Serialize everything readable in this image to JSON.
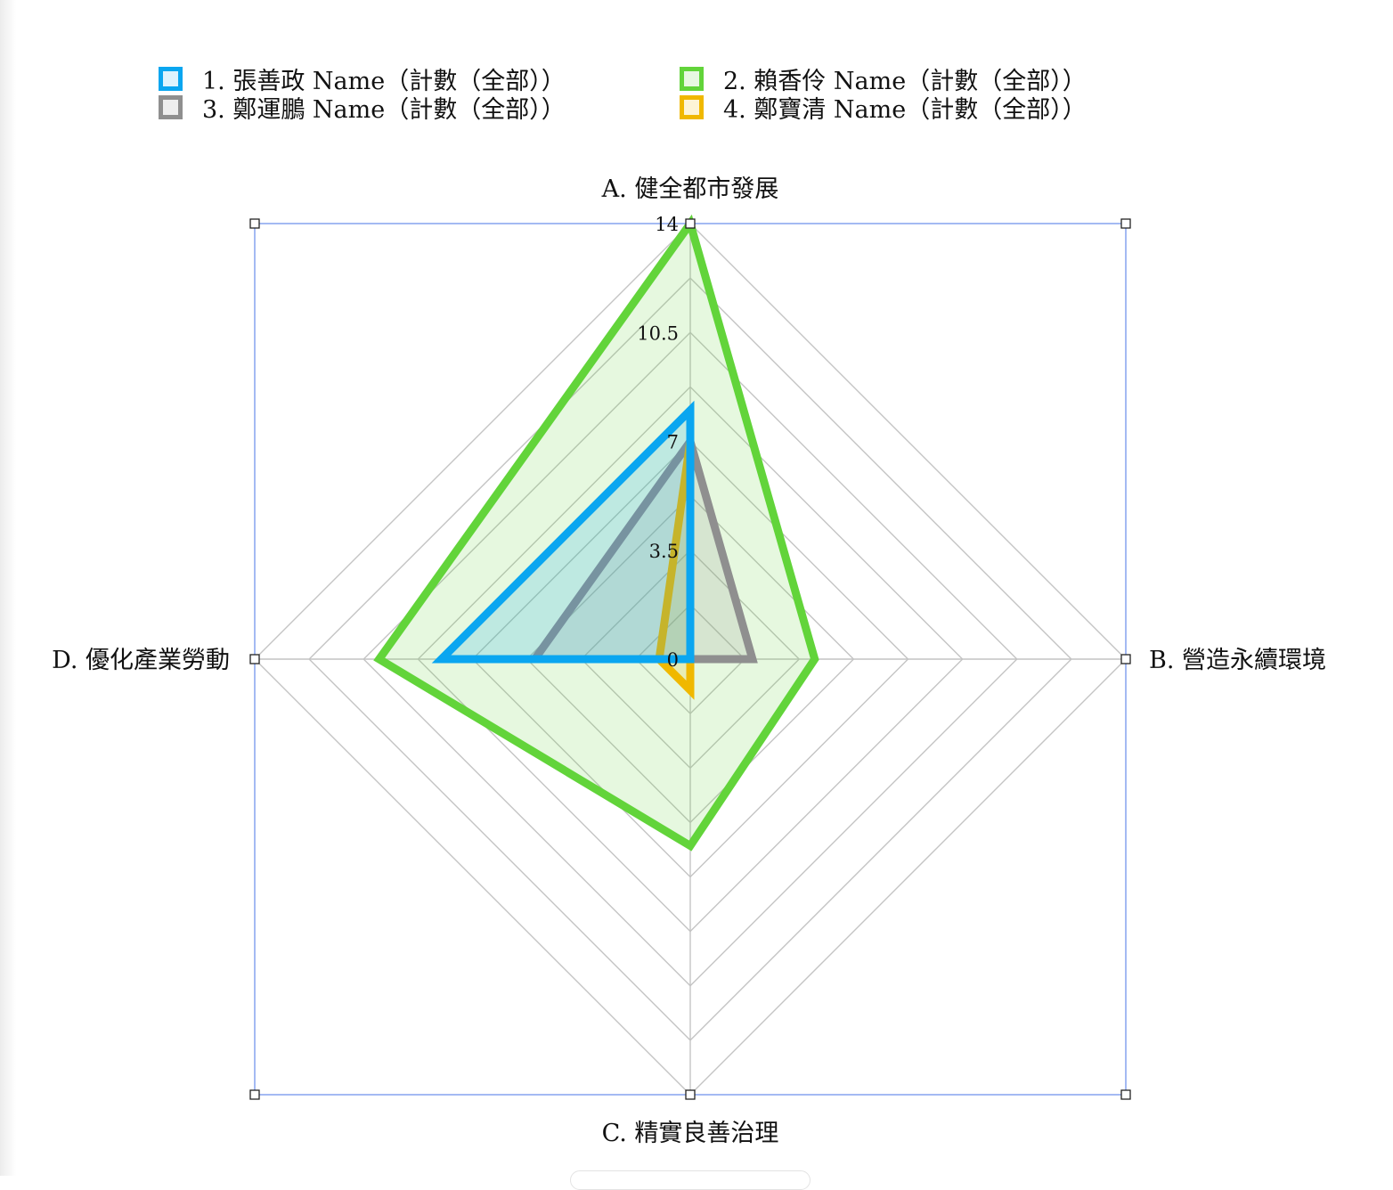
{
  "chart_data": {
    "type": "radar",
    "title": "",
    "axes": [
      "A. 健全都市發展",
      "B. 營造永續環境",
      "C. 精實良善治理",
      "D. 優化產業勞動"
    ],
    "rlim": [
      0,
      14
    ],
    "ticks": [
      "0",
      "3.5",
      "7",
      "10.5",
      "14"
    ],
    "tick_values": [
      0,
      3.5,
      7,
      10.5,
      14
    ],
    "grid": true,
    "grid_levels": 8,
    "legend_position": "top",
    "series": [
      {
        "name": "1. 張善政 Name（計數（全部））",
        "values": [
          8,
          0,
          0,
          8
        ],
        "color": "#0aa6f0",
        "fill": "#0aa6f0",
        "fill_opacity": 0.18
      },
      {
        "name": "2. 賴香伶 Name（計數（全部））",
        "values": [
          14,
          4,
          6,
          10
        ],
        "color": "#62d43a",
        "fill": "#62d43a",
        "fill_opacity": 0.16
      },
      {
        "name": "3. 鄭運鵬 Name（計數（全部））",
        "values": [
          7,
          2,
          0,
          5
        ],
        "color": "#8f8f8f",
        "fill": "#8f8f8f",
        "fill_opacity": 0.18
      },
      {
        "name": "4. 鄭寶清 Name（計數（全部））",
        "values": [
          7,
          0,
          1,
          1
        ],
        "color": "#f0b800",
        "fill": "#f0b800",
        "fill_opacity": 0.18
      }
    ]
  }
}
